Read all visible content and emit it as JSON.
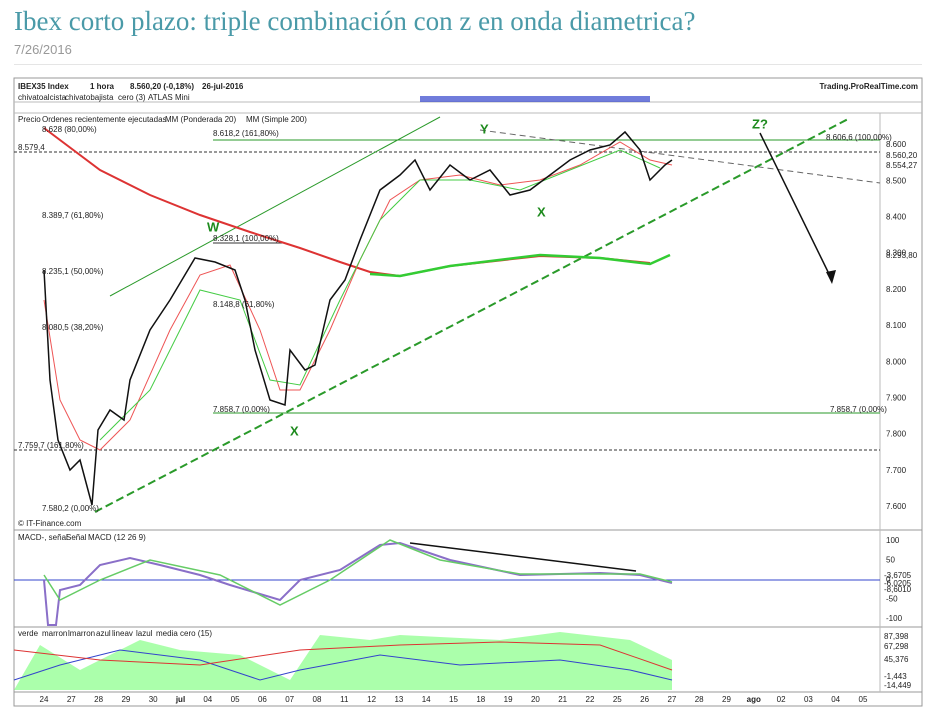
{
  "post": {
    "title": "Ibex corto plazo: triple combinación con z en onda diametrica?",
    "date": "7/26/2016"
  },
  "chart": {
    "header": {
      "symbol": "IBEX35 Index",
      "interval": "1 hora",
      "quote": "8.560,20 (-0,18%)",
      "date": "26-jul-2016",
      "source": "Trading.ProRealTime.com"
    },
    "indicator_tags": [
      "chivatoalcista",
      "chivatobajista",
      "cero (3)",
      "ATLAS Mini"
    ],
    "price_legend": [
      "Precio",
      "Ordenes recientemente ejecutadas",
      "MM (Ponderada 20)",
      "MM (Simple 200)"
    ],
    "price_axis": [
      "8.600",
      "8.500",
      "8.400",
      "8.300",
      "8.200",
      "8.100",
      "8.000",
      "7.900",
      "7.800",
      "7.700",
      "7.600"
    ],
    "price_tags": [
      "8.560,20",
      "8.554,27",
      "8.293,80"
    ],
    "fib_labels": [
      "8.628 (80,00%)",
      "8.579,4",
      "8.618,2 (161,80%)",
      "8.606,6 (100,00%)",
      "8.389,7 (61,80%)",
      "8.328,1 (100,00%)",
      "8.235,1 (50,00%)",
      "8.148,8 (61,80%)",
      "8.080,5 (38,20%)",
      "7.759,7 (161,80%)",
      "7.580,2 (0,00%)",
      "7.858,7 (0,00%)",
      "7.858,7 (0,00%)"
    ],
    "wave_labels": [
      "W",
      "X",
      "Y",
      "X",
      "Z?"
    ],
    "copyright": "© IT-Finance.com",
    "macd_legend": [
      "MACD-, señal",
      "Señal",
      "MACD (12 26 9)"
    ],
    "macd_axis": [
      "100",
      "50",
      "0",
      "-50",
      "-100"
    ],
    "macd_tags": [
      "-3,6705",
      "-6,0205",
      "-8,6010"
    ],
    "osc_legend": [
      "verde",
      "marron",
      "lmarron",
      "azul",
      "lineav",
      "lazul",
      "media",
      "cero (15)"
    ],
    "osc_tags": [
      "87,398",
      "67,298",
      "45,376",
      "-1,443",
      "-14,449"
    ],
    "dates": [
      "24",
      "27",
      "28",
      "29",
      "30",
      "jul",
      "04",
      "05",
      "06",
      "07",
      "08",
      "11",
      "12",
      "13",
      "14",
      "15",
      "18",
      "19",
      "20",
      "21",
      "22",
      "25",
      "26",
      "27",
      "28",
      "29",
      "ago",
      "02",
      "03",
      "04",
      "05"
    ]
  }
}
